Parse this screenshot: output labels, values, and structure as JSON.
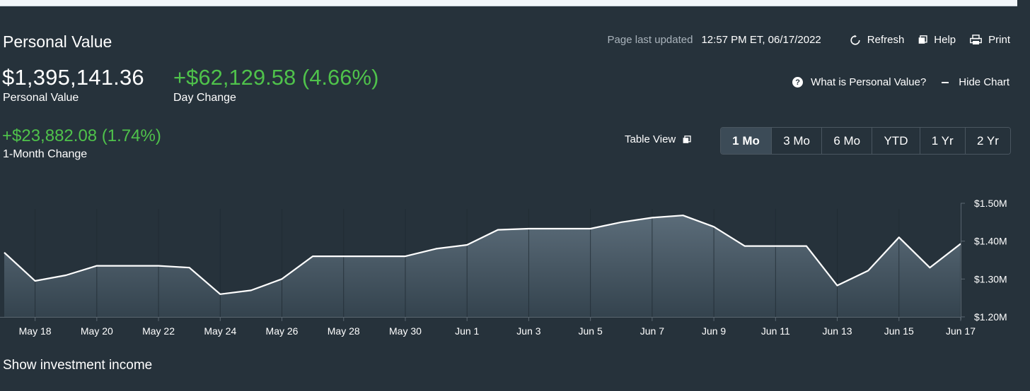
{
  "header": {
    "title": "Personal Value",
    "updated_label": "Page last updated",
    "updated_value": "12:57 PM ET, 06/17/2022",
    "refresh_label": "Refresh",
    "help_label": "Help",
    "print_label": "Print"
  },
  "summary": {
    "personal_value": "$1,395,141.36",
    "personal_value_label": "Personal Value",
    "day_change": "+$62,129.58 (4.66%)",
    "day_change_label": "Day Change",
    "month_change": "+$23,882.08 (1.74%)",
    "month_change_label": "1-Month Change"
  },
  "links": {
    "what_is": "What is Personal Value?",
    "hide_chart": "Hide Chart",
    "table_view": "Table View"
  },
  "ranges": {
    "items": [
      "1 Mo",
      "3 Mo",
      "6 Mo",
      "YTD",
      "1 Yr",
      "2 Yr"
    ],
    "active": "1 Mo"
  },
  "footer": {
    "show_income": "Show investment income"
  },
  "colors": {
    "background": "#26323b",
    "positive": "#4fc24b",
    "line": "#ffffff"
  },
  "chart_data": {
    "type": "area",
    "x": [
      "May 17",
      "May 18",
      "May 19",
      "May 20",
      "May 21",
      "May 22",
      "May 23",
      "May 24",
      "May 25",
      "May 26",
      "May 27",
      "May 28",
      "May 29",
      "May 30",
      "May 31",
      "Jun 1",
      "Jun 2",
      "Jun 3",
      "Jun 4",
      "Jun 5",
      "Jun 6",
      "Jun 7",
      "Jun 8",
      "Jun 9",
      "Jun 10",
      "Jun 11",
      "Jun 12",
      "Jun 13",
      "Jun 14",
      "Jun 15",
      "Jun 16",
      "Jun 17"
    ],
    "series": [
      {
        "values": [
          1.37,
          1.295,
          1.31,
          1.335,
          1.335,
          1.335,
          1.33,
          1.26,
          1.27,
          1.3,
          1.36,
          1.36,
          1.36,
          1.36,
          1.38,
          1.39,
          1.43,
          1.433,
          1.433,
          1.433,
          1.45,
          1.462,
          1.468,
          1.438,
          1.387,
          1.387,
          1.387,
          1.283,
          1.322,
          1.41,
          1.33,
          1.393
        ]
      }
    ],
    "xtick_labels": [
      "May 18",
      "May 20",
      "May 22",
      "May 24",
      "May 26",
      "May 28",
      "May 30",
      "Jun 1",
      "Jun 3",
      "Jun 5",
      "Jun 7",
      "Jun 9",
      "Jun 11",
      "Jun 13",
      "Jun 15",
      "Jun 17"
    ],
    "ytick_values": [
      1.2,
      1.3,
      1.4,
      1.5
    ],
    "ytick_labels": [
      "$1.20M",
      "$1.30M",
      "$1.40M",
      "$1.50M"
    ],
    "ylim": [
      1.2,
      1.5
    ],
    "yaxis_side": "right",
    "grid": "vertical"
  }
}
